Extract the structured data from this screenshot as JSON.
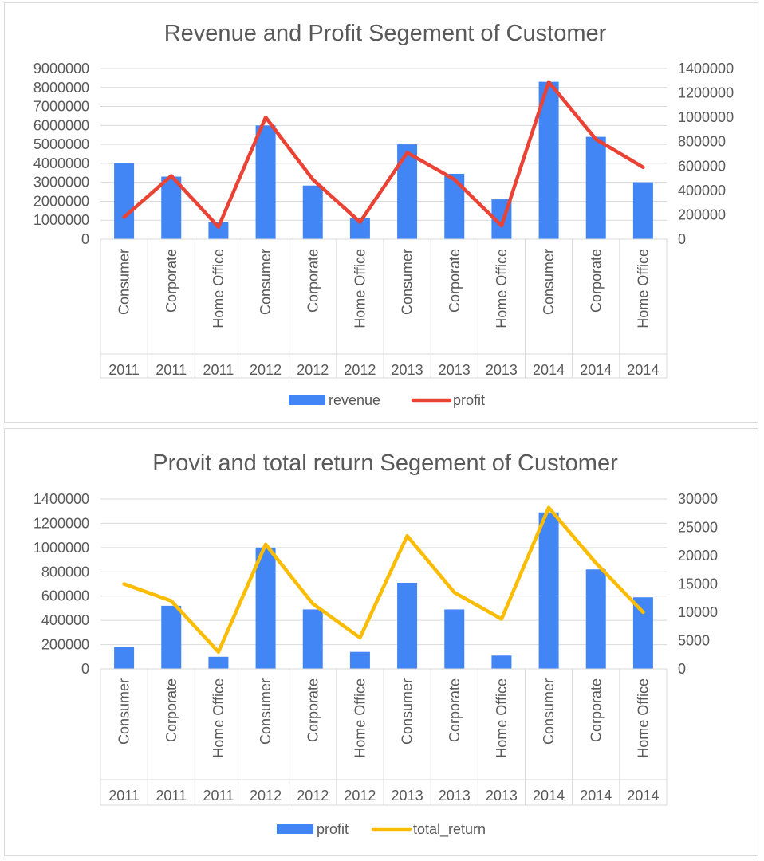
{
  "chart_data": [
    {
      "type": "bar",
      "title": "Revenue and Profit Segement of Customer",
      "categories": [
        "Consumer",
        "Corporate",
        "Home Office",
        "Consumer",
        "Corporate",
        "Home Office",
        "Consumer",
        "Corporate",
        "Home Office",
        "Consumer",
        "Corporate",
        "Home Office"
      ],
      "years": [
        "2011",
        "2011",
        "2011",
        "2012",
        "2012",
        "2012",
        "2013",
        "2013",
        "2013",
        "2014",
        "2014",
        "2014"
      ],
      "series": [
        {
          "name": "revenue",
          "type": "bar",
          "axis": "left",
          "color": "#4285f4",
          "values": [
            4000000,
            3300000,
            900000,
            6000000,
            2830000,
            1100000,
            5000000,
            3450000,
            2100000,
            8300000,
            5400000,
            3000000
          ]
        },
        {
          "name": "profit",
          "type": "line",
          "axis": "right",
          "color": "#ea4335",
          "values": [
            180000,
            520000,
            100000,
            1000000,
            490000,
            140000,
            710000,
            490000,
            110000,
            1290000,
            820000,
            590000
          ]
        }
      ],
      "left_axis": {
        "min": 0,
        "max": 9000000,
        "step": 1000000
      },
      "right_axis": {
        "min": 0,
        "max": 1400000,
        "step": 200000
      },
      "grid": true,
      "legend": "bottom"
    },
    {
      "type": "bar",
      "title": "Provit and total return Segement of Customer",
      "categories": [
        "Consumer",
        "Corporate",
        "Home Office",
        "Consumer",
        "Corporate",
        "Home Office",
        "Consumer",
        "Corporate",
        "Home Office",
        "Consumer",
        "Corporate",
        "Home Office"
      ],
      "years": [
        "2011",
        "2011",
        "2011",
        "2012",
        "2012",
        "2012",
        "2013",
        "2013",
        "2013",
        "2014",
        "2014",
        "2014"
      ],
      "series": [
        {
          "name": "profit",
          "type": "bar",
          "axis": "left",
          "color": "#4285f4",
          "values": [
            180000,
            520000,
            100000,
            1000000,
            490000,
            140000,
            710000,
            490000,
            110000,
            1290000,
            820000,
            590000
          ]
        },
        {
          "name": "total_return",
          "type": "line",
          "axis": "right",
          "color": "#fbbc04",
          "values": [
            15000,
            12000,
            3000,
            22000,
            11500,
            5500,
            23500,
            13500,
            8800,
            28500,
            18700,
            10000
          ]
        }
      ],
      "left_axis": {
        "min": 0,
        "max": 1400000,
        "step": 200000
      },
      "right_axis": {
        "min": 0,
        "max": 30000,
        "step": 5000
      },
      "grid": true,
      "legend": "bottom"
    }
  ]
}
